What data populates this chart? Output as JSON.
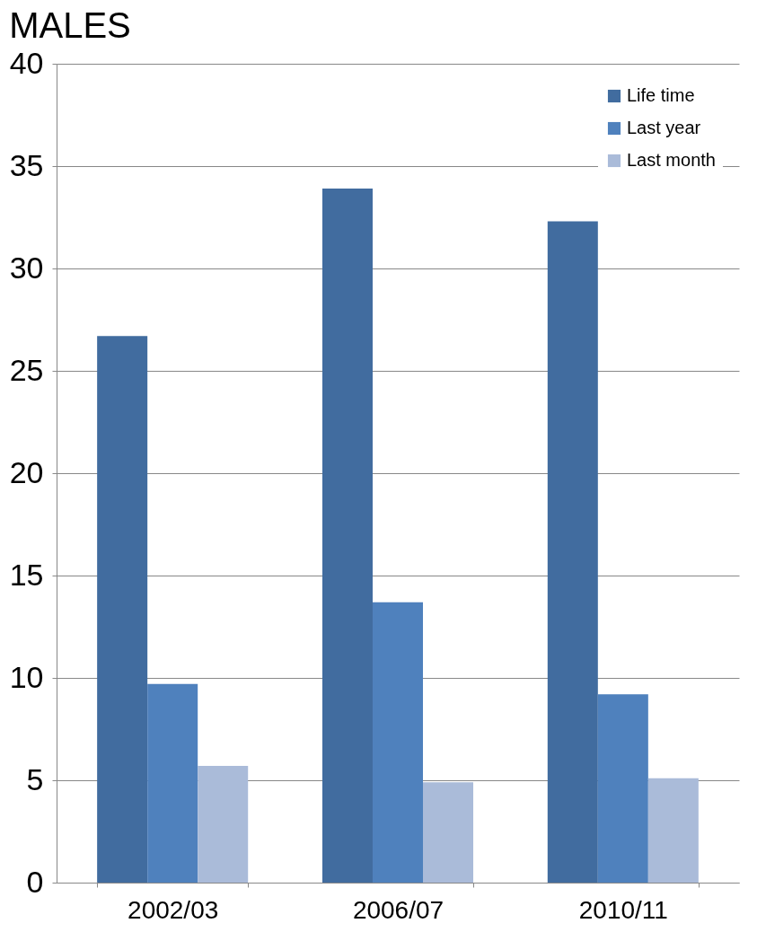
{
  "chart_data": {
    "type": "bar",
    "title": "MALES",
    "categories": [
      "2002/03",
      "2006/07",
      "2010/11"
    ],
    "series": [
      {
        "name": "Life time",
        "color": "#416c9f",
        "values": [
          26.7,
          33.9,
          32.3
        ]
      },
      {
        "name": "Last year",
        "color": "#4f81bd",
        "values": [
          9.7,
          13.7,
          9.2
        ]
      },
      {
        "name": "Last month",
        "color": "#aabbd9",
        "values": [
          5.7,
          4.9,
          5.1
        ]
      }
    ],
    "ylim": [
      0,
      40
    ],
    "yticks": [
      0,
      5,
      10,
      15,
      20,
      25,
      30,
      35,
      40
    ],
    "grid": "y",
    "legend": "top right"
  }
}
